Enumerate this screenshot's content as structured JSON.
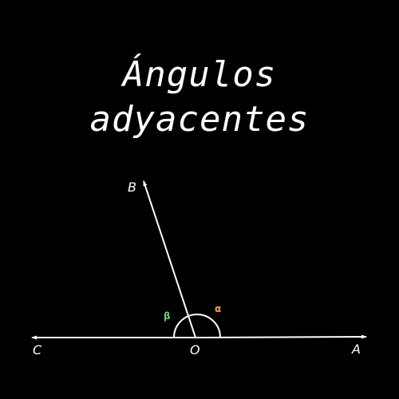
{
  "title": {
    "line1": "Ángulos",
    "line2": "adyacentes"
  },
  "points": {
    "A": "A",
    "B": "B",
    "C": "C",
    "O": "O"
  },
  "angles": {
    "alpha": {
      "label": "α",
      "color": "#f2a65a"
    },
    "beta": {
      "label": "β",
      "color": "#6fcf7f"
    }
  },
  "colors": {
    "background": "#000000",
    "lines": "#ffffff"
  }
}
